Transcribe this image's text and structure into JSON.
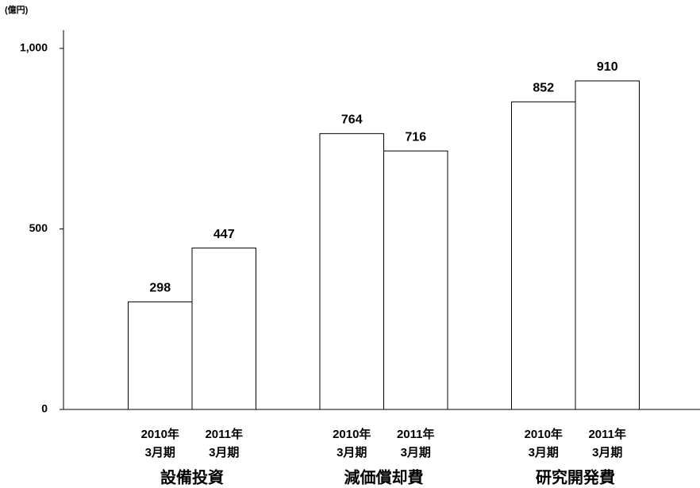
{
  "chart_data": {
    "type": "bar",
    "unit_label": "(億円)",
    "categories": [
      "設備投資",
      "減価償却費",
      "研究開発費"
    ],
    "series": [
      {
        "name": "2010年\n3月期",
        "color": "#ffffff",
        "values": [
          298,
          764,
          852
        ]
      },
      {
        "name": "2011年\n3月期",
        "color": "#ffffff",
        "values": [
          447,
          716,
          910
        ]
      }
    ],
    "ylim": [
      0,
      1050
    ],
    "yticks": [
      0,
      500,
      {
        "value": 1000,
        "label": "1,000"
      }
    ],
    "grid": false
  }
}
